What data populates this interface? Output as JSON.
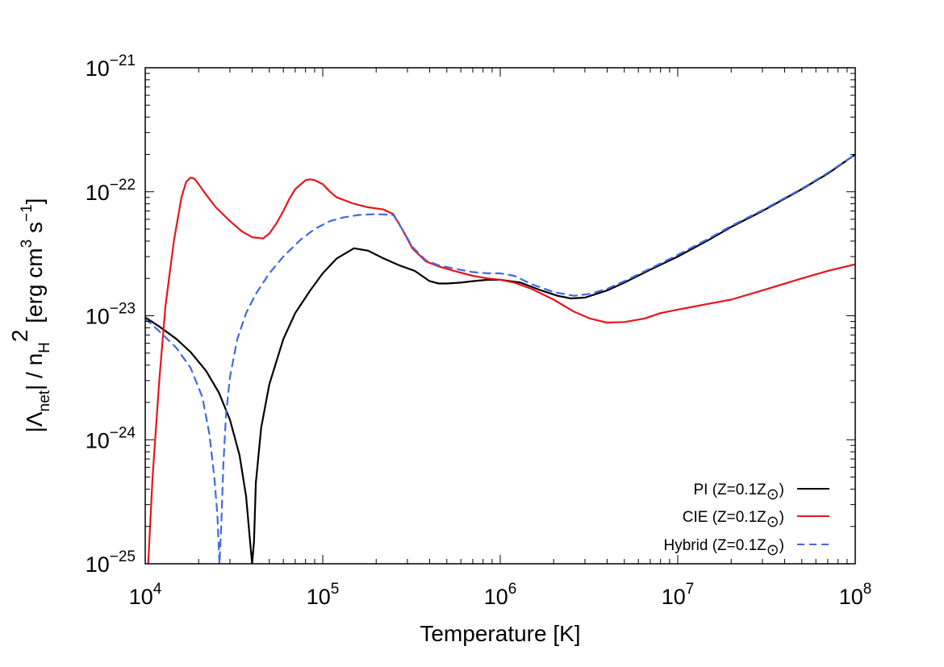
{
  "chart_data": {
    "type": "line",
    "xlabel": "Temperature [K]",
    "ylabel": {
      "prefix": "|Λ",
      "sub1": "net",
      "mid": "| / n",
      "sub2": "H",
      "sup2": "2",
      "unit_a": " [erg cm",
      "sup3": "3",
      "unit_b": " s",
      "supm1": "−1",
      "unit_c": "]"
    },
    "x_scale": "log",
    "y_scale": "log",
    "xlim": [
      10000,
      100000000
    ],
    "ylim": [
      1e-25,
      1e-21
    ],
    "x_ticks": [
      {
        "base": "10",
        "exp": "4",
        "value": 10000
      },
      {
        "base": "10",
        "exp": "5",
        "value": 100000
      },
      {
        "base": "10",
        "exp": "6",
        "value": 1000000
      },
      {
        "base": "10",
        "exp": "7",
        "value": 10000000
      },
      {
        "base": "10",
        "exp": "8",
        "value": 100000000
      }
    ],
    "y_ticks": [
      {
        "base": "10",
        "exp": "−25",
        "value": 1e-25
      },
      {
        "base": "10",
        "exp": "−24",
        "value": 1e-24
      },
      {
        "base": "10",
        "exp": "−23",
        "value": 1e-23
      },
      {
        "base": "10",
        "exp": "−22",
        "value": 1e-22
      },
      {
        "base": "10",
        "exp": "−21",
        "value": 1e-21
      }
    ],
    "grid": false,
    "legend_position": "bottom-right",
    "series": [
      {
        "name": "PI (Z=0.1Z",
        "name_sub": "⊙",
        "name_end": ")",
        "color": "#000000",
        "dash": "solid",
        "x": [
          10000,
          12000,
          15000,
          18000,
          22000,
          26000,
          30000,
          34000,
          37000,
          39000,
          40000,
          41000,
          42000,
          45000,
          50000,
          60000,
          70000,
          85000,
          100000,
          120000,
          150000,
          180000,
          220000,
          270000,
          330000,
          400000,
          450000,
          500000,
          600000,
          700000,
          850000,
          1000000,
          1300000,
          1700000,
          2100000,
          2500000,
          3000000,
          4000000,
          5000000,
          7000000,
          10000000,
          15000000,
          20000000,
          30000000,
          50000000,
          70000000,
          100000000
        ],
        "y": [
          9.7e-24,
          8.2e-24,
          6.5e-24,
          5.1e-24,
          3.6e-24,
          2.4e-24,
          1.45e-24,
          7.5e-25,
          3.5e-25,
          1.5e-25,
          1e-25,
          1.5e-25,
          4.5e-25,
          1.25e-24,
          2.8e-24,
          6.5e-24,
          1.05e-23,
          1.6e-23,
          2.2e-23,
          2.9e-23,
          3.5e-23,
          3.35e-23,
          2.9e-23,
          2.55e-23,
          2.3e-23,
          1.9e-23,
          1.82e-23,
          1.82e-23,
          1.85e-23,
          1.9e-23,
          1.95e-23,
          1.95e-23,
          1.85e-23,
          1.6e-23,
          1.45e-23,
          1.38e-23,
          1.4e-23,
          1.6e-23,
          1.85e-23,
          2.35e-23,
          3e-23,
          4.1e-23,
          5.2e-23,
          7e-23,
          1.05e-22,
          1.4e-22,
          2e-22
        ]
      },
      {
        "name": "CIE (Z=0.1Z",
        "name_sub": "⊙",
        "name_end": ")",
        "color": "#e8141c",
        "dash": "solid",
        "x": [
          10400,
          11000,
          12000,
          13000,
          14500,
          16000,
          17000,
          18000,
          19000,
          20000,
          22000,
          25000,
          30000,
          35000,
          40000,
          46000,
          50000,
          55000,
          60000,
          65000,
          70000,
          80000,
          85000,
          90000,
          100000,
          110000,
          120000,
          150000,
          180000,
          220000,
          250000,
          280000,
          320000,
          380000,
          450000,
          550000,
          700000,
          850000,
          1000000,
          1200000,
          1500000,
          2000000,
          2600000,
          3200000,
          4000000,
          5000000,
          6500000,
          8000000,
          10000000,
          15000000,
          20000000,
          30000000,
          50000000,
          70000000,
          100000000
        ],
        "y": [
          1e-25,
          5e-25,
          3e-24,
          1.2e-23,
          4e-23,
          9e-23,
          1.2e-22,
          1.3e-22,
          1.27e-22,
          1.15e-22,
          9.5e-23,
          7.5e-23,
          5.8e-23,
          4.8e-23,
          4.3e-23,
          4.2e-23,
          4.6e-23,
          5.6e-23,
          7e-23,
          8.8e-23,
          1.05e-22,
          1.24e-22,
          1.26e-22,
          1.24e-22,
          1.15e-22,
          1e-22,
          9e-23,
          8e-23,
          7.5e-23,
          7.2e-23,
          6.6e-23,
          5e-23,
          3.5e-23,
          2.75e-23,
          2.5e-23,
          2.3e-23,
          2.1e-23,
          2e-23,
          1.95e-23,
          1.85e-23,
          1.65e-23,
          1.35e-23,
          1.08e-23,
          9.5e-24,
          8.8e-24,
          8.9e-24,
          9.5e-24,
          1.05e-23,
          1.12e-23,
          1.25e-23,
          1.35e-23,
          1.6e-23,
          2e-23,
          2.3e-23,
          2.6e-23
        ]
      },
      {
        "name": "Hybrid (Z=0.1Z",
        "name_sub": "⊙",
        "name_end": ")",
        "color": "#4169e1",
        "dash": "dashed",
        "x": [
          10000,
          12000,
          15000,
          18000,
          21000,
          23000,
          24500,
          25500,
          26200,
          26800,
          27500,
          28500,
          30000,
          33000,
          37000,
          42000,
          50000,
          60000,
          75000,
          90000,
          110000,
          130000,
          160000,
          200000,
          250000,
          280000,
          320000,
          380000,
          450000,
          550000,
          700000,
          850000,
          1000000,
          1200000,
          1500000,
          2000000,
          2600000,
          3200000,
          4000000,
          5000000,
          7000000,
          10000000,
          15000000,
          20000000,
          30000000,
          50000000,
          70000000,
          100000000
        ],
        "y": [
          9.5e-24,
          7.5e-24,
          5.5e-24,
          3.8e-24,
          2.2e-24,
          1.1e-24,
          5e-25,
          2.5e-25,
          1e-25,
          2e-25,
          6e-25,
          1.6e-24,
          3.2e-24,
          6.5e-24,
          1.05e-23,
          1.5e-23,
          2.2e-23,
          3e-23,
          4.1e-23,
          5e-23,
          5.8e-23,
          6.2e-23,
          6.5e-23,
          6.6e-23,
          6.5e-23,
          5e-23,
          3.6e-23,
          2.8e-23,
          2.55e-23,
          2.4e-23,
          2.25e-23,
          2.2e-23,
          2.2e-23,
          2.1e-23,
          1.8e-23,
          1.55e-23,
          1.45e-23,
          1.5e-23,
          1.65e-23,
          1.9e-23,
          2.4e-23,
          3.1e-23,
          4.2e-23,
          5.3e-23,
          7.1e-23,
          1.06e-22,
          1.42e-22,
          2e-22
        ]
      }
    ]
  }
}
